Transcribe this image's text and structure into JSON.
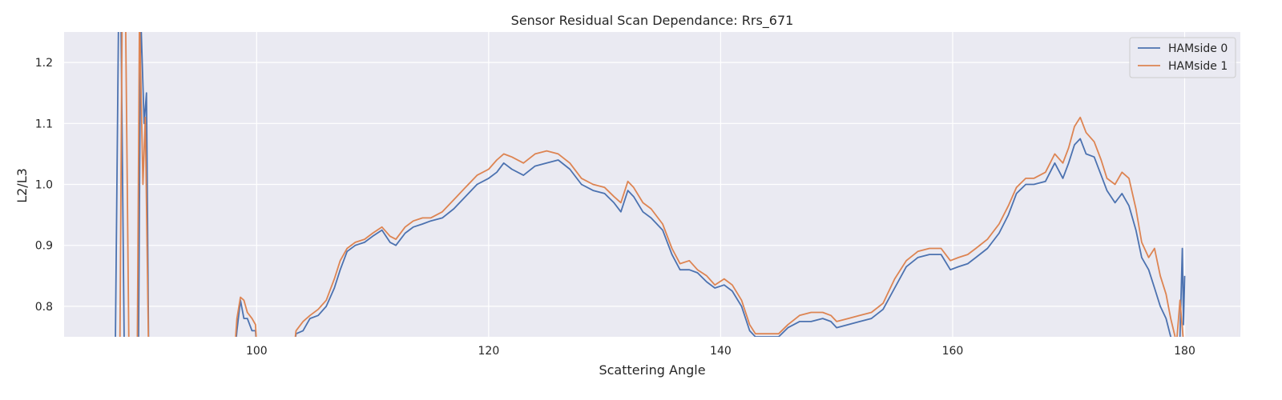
{
  "chart_data": {
    "type": "line",
    "title": "Sensor Residual Scan Dependance: Rrs_671",
    "xlabel": "Scattering Angle",
    "ylabel": "L2/L3",
    "xlim": [
      83.4,
      184.8
    ],
    "ylim": [
      0.75,
      1.25
    ],
    "xticks": [
      100,
      120,
      140,
      160,
      180
    ],
    "yticks": [
      0.8,
      0.9,
      1.0,
      1.1,
      1.2
    ],
    "xtick_labels": [
      "100",
      "120",
      "140",
      "160",
      "180"
    ],
    "ytick_labels": [
      "0.8",
      "0.9",
      "1.0",
      "1.1",
      "1.2"
    ],
    "grid": true,
    "legend_position": "top-right",
    "background_color": "#eaeaf2",
    "series": [
      {
        "name": "HAMside 0",
        "color": "#4c72b0",
        "points": [
          [
            87.8,
            0.7
          ],
          [
            88.1,
            1.28
          ],
          [
            88.3,
            1.28
          ],
          [
            88.6,
            0.7
          ],
          [
            89.8,
            0.7
          ],
          [
            90.0,
            1.28
          ],
          [
            90.3,
            1.1
          ],
          [
            90.5,
            1.15
          ],
          [
            90.7,
            0.7
          ],
          [
            98.0,
            0.7
          ],
          [
            98.3,
            0.76
          ],
          [
            98.6,
            0.81
          ],
          [
            98.9,
            0.78
          ],
          [
            99.2,
            0.78
          ],
          [
            99.6,
            0.76
          ],
          [
            99.9,
            0.76
          ],
          [
            100.1,
            0.7
          ],
          [
            103.0,
            0.7
          ],
          [
            103.4,
            0.755
          ],
          [
            104.0,
            0.76
          ],
          [
            104.6,
            0.78
          ],
          [
            105.3,
            0.785
          ],
          [
            106.0,
            0.8
          ],
          [
            106.7,
            0.83
          ],
          [
            107.2,
            0.86
          ],
          [
            107.8,
            0.89
          ],
          [
            108.5,
            0.9
          ],
          [
            109.3,
            0.905
          ],
          [
            110.0,
            0.915
          ],
          [
            110.8,
            0.925
          ],
          [
            111.5,
            0.905
          ],
          [
            112.0,
            0.9
          ],
          [
            112.8,
            0.92
          ],
          [
            113.5,
            0.93
          ],
          [
            114.3,
            0.935
          ],
          [
            115.0,
            0.94
          ],
          [
            116.0,
            0.945
          ],
          [
            117.0,
            0.96
          ],
          [
            118.0,
            0.98
          ],
          [
            119.0,
            1.0
          ],
          [
            120.0,
            1.01
          ],
          [
            120.7,
            1.02
          ],
          [
            121.3,
            1.035
          ],
          [
            122.0,
            1.025
          ],
          [
            123.0,
            1.015
          ],
          [
            124.0,
            1.03
          ],
          [
            125.0,
            1.035
          ],
          [
            126.0,
            1.04
          ],
          [
            127.0,
            1.025
          ],
          [
            128.0,
            1.0
          ],
          [
            129.0,
            0.99
          ],
          [
            130.0,
            0.985
          ],
          [
            130.8,
            0.97
          ],
          [
            131.4,
            0.955
          ],
          [
            132.0,
            0.99
          ],
          [
            132.5,
            0.98
          ],
          [
            133.3,
            0.955
          ],
          [
            134.0,
            0.945
          ],
          [
            135.0,
            0.925
          ],
          [
            135.8,
            0.885
          ],
          [
            136.5,
            0.86
          ],
          [
            137.3,
            0.86
          ],
          [
            138.0,
            0.855
          ],
          [
            138.8,
            0.84
          ],
          [
            139.5,
            0.83
          ],
          [
            140.3,
            0.835
          ],
          [
            141.0,
            0.825
          ],
          [
            141.8,
            0.8
          ],
          [
            142.5,
            0.76
          ],
          [
            143.0,
            0.75
          ],
          [
            145.0,
            0.75
          ],
          [
            145.8,
            0.765
          ],
          [
            146.8,
            0.775
          ],
          [
            147.8,
            0.775
          ],
          [
            148.8,
            0.78
          ],
          [
            149.5,
            0.775
          ],
          [
            150.0,
            0.765
          ],
          [
            151.0,
            0.77
          ],
          [
            152.0,
            0.775
          ],
          [
            153.0,
            0.78
          ],
          [
            154.0,
            0.795
          ],
          [
            155.0,
            0.83
          ],
          [
            156.0,
            0.865
          ],
          [
            157.0,
            0.88
          ],
          [
            158.0,
            0.885
          ],
          [
            159.0,
            0.885
          ],
          [
            159.8,
            0.86
          ],
          [
            160.5,
            0.865
          ],
          [
            161.3,
            0.87
          ],
          [
            162.0,
            0.88
          ],
          [
            163.0,
            0.895
          ],
          [
            164.0,
            0.92
          ],
          [
            164.8,
            0.95
          ],
          [
            165.5,
            0.985
          ],
          [
            166.3,
            1.0
          ],
          [
            167.0,
            1.0
          ],
          [
            168.0,
            1.005
          ],
          [
            168.8,
            1.035
          ],
          [
            169.5,
            1.01
          ],
          [
            170.0,
            1.035
          ],
          [
            170.5,
            1.065
          ],
          [
            171.0,
            1.075
          ],
          [
            171.5,
            1.05
          ],
          [
            172.2,
            1.045
          ],
          [
            172.8,
            1.015
          ],
          [
            173.3,
            0.99
          ],
          [
            174.0,
            0.97
          ],
          [
            174.6,
            0.985
          ],
          [
            175.2,
            0.965
          ],
          [
            175.8,
            0.925
          ],
          [
            176.3,
            0.88
          ],
          [
            176.9,
            0.86
          ],
          [
            177.4,
            0.83
          ],
          [
            177.9,
            0.8
          ],
          [
            178.4,
            0.78
          ],
          [
            178.8,
            0.75
          ],
          [
            179.3,
            0.74
          ],
          [
            179.6,
            0.75
          ],
          [
            179.8,
            0.895
          ],
          [
            179.9,
            0.77
          ],
          [
            180.0,
            0.85
          ]
        ]
      },
      {
        "name": "HAMside 1",
        "color": "#dd8452",
        "points": [
          [
            88.2,
            0.7
          ],
          [
            88.4,
            1.28
          ],
          [
            88.7,
            1.28
          ],
          [
            89.0,
            0.7
          ],
          [
            89.7,
            0.7
          ],
          [
            89.9,
            1.28
          ],
          [
            90.2,
            1.0
          ],
          [
            90.4,
            1.11
          ],
          [
            90.7,
            0.7
          ],
          [
            98.0,
            0.7
          ],
          [
            98.3,
            0.78
          ],
          [
            98.6,
            0.815
          ],
          [
            98.9,
            0.81
          ],
          [
            99.2,
            0.79
          ],
          [
            99.6,
            0.78
          ],
          [
            99.9,
            0.77
          ],
          [
            100.1,
            0.7
          ],
          [
            103.0,
            0.7
          ],
          [
            103.4,
            0.76
          ],
          [
            104.0,
            0.775
          ],
          [
            104.6,
            0.785
          ],
          [
            105.3,
            0.795
          ],
          [
            106.0,
            0.81
          ],
          [
            106.7,
            0.845
          ],
          [
            107.2,
            0.875
          ],
          [
            107.8,
            0.895
          ],
          [
            108.5,
            0.905
          ],
          [
            109.3,
            0.91
          ],
          [
            110.0,
            0.92
          ],
          [
            110.8,
            0.93
          ],
          [
            111.5,
            0.915
          ],
          [
            112.0,
            0.91
          ],
          [
            112.8,
            0.93
          ],
          [
            113.5,
            0.94
          ],
          [
            114.3,
            0.945
          ],
          [
            115.0,
            0.945
          ],
          [
            116.0,
            0.955
          ],
          [
            117.0,
            0.975
          ],
          [
            118.0,
            0.995
          ],
          [
            119.0,
            1.015
          ],
          [
            120.0,
            1.025
          ],
          [
            120.7,
            1.04
          ],
          [
            121.3,
            1.05
          ],
          [
            122.0,
            1.045
          ],
          [
            123.0,
            1.035
          ],
          [
            124.0,
            1.05
          ],
          [
            125.0,
            1.055
          ],
          [
            126.0,
            1.05
          ],
          [
            127.0,
            1.035
          ],
          [
            128.0,
            1.01
          ],
          [
            129.0,
            1.0
          ],
          [
            130.0,
            0.995
          ],
          [
            130.8,
            0.98
          ],
          [
            131.4,
            0.97
          ],
          [
            132.0,
            1.005
          ],
          [
            132.5,
            0.995
          ],
          [
            133.3,
            0.97
          ],
          [
            134.0,
            0.96
          ],
          [
            135.0,
            0.935
          ],
          [
            135.8,
            0.895
          ],
          [
            136.5,
            0.87
          ],
          [
            137.3,
            0.875
          ],
          [
            138.0,
            0.86
          ],
          [
            138.8,
            0.85
          ],
          [
            139.5,
            0.835
          ],
          [
            140.3,
            0.845
          ],
          [
            141.0,
            0.835
          ],
          [
            141.8,
            0.81
          ],
          [
            142.5,
            0.77
          ],
          [
            143.0,
            0.755
          ],
          [
            145.0,
            0.755
          ],
          [
            145.8,
            0.77
          ],
          [
            146.8,
            0.785
          ],
          [
            147.8,
            0.79
          ],
          [
            148.8,
            0.79
          ],
          [
            149.5,
            0.785
          ],
          [
            150.0,
            0.775
          ],
          [
            151.0,
            0.78
          ],
          [
            152.0,
            0.785
          ],
          [
            153.0,
            0.79
          ],
          [
            154.0,
            0.805
          ],
          [
            155.0,
            0.845
          ],
          [
            156.0,
            0.875
          ],
          [
            157.0,
            0.89
          ],
          [
            158.0,
            0.895
          ],
          [
            159.0,
            0.895
          ],
          [
            159.8,
            0.875
          ],
          [
            160.5,
            0.88
          ],
          [
            161.3,
            0.885
          ],
          [
            162.0,
            0.895
          ],
          [
            163.0,
            0.91
          ],
          [
            164.0,
            0.935
          ],
          [
            164.8,
            0.965
          ],
          [
            165.5,
            0.995
          ],
          [
            166.3,
            1.01
          ],
          [
            167.0,
            1.01
          ],
          [
            168.0,
            1.02
          ],
          [
            168.8,
            1.05
          ],
          [
            169.5,
            1.035
          ],
          [
            170.0,
            1.06
          ],
          [
            170.5,
            1.095
          ],
          [
            171.0,
            1.11
          ],
          [
            171.5,
            1.085
          ],
          [
            172.2,
            1.07
          ],
          [
            172.8,
            1.04
          ],
          [
            173.3,
            1.01
          ],
          [
            174.0,
            1.0
          ],
          [
            174.6,
            1.02
          ],
          [
            175.2,
            1.01
          ],
          [
            175.8,
            0.96
          ],
          [
            176.3,
            0.905
          ],
          [
            176.9,
            0.88
          ],
          [
            177.4,
            0.895
          ],
          [
            177.9,
            0.85
          ],
          [
            178.4,
            0.82
          ],
          [
            178.8,
            0.78
          ],
          [
            179.3,
            0.74
          ],
          [
            179.6,
            0.81
          ],
          [
            179.9,
            0.74
          ]
        ]
      }
    ]
  }
}
